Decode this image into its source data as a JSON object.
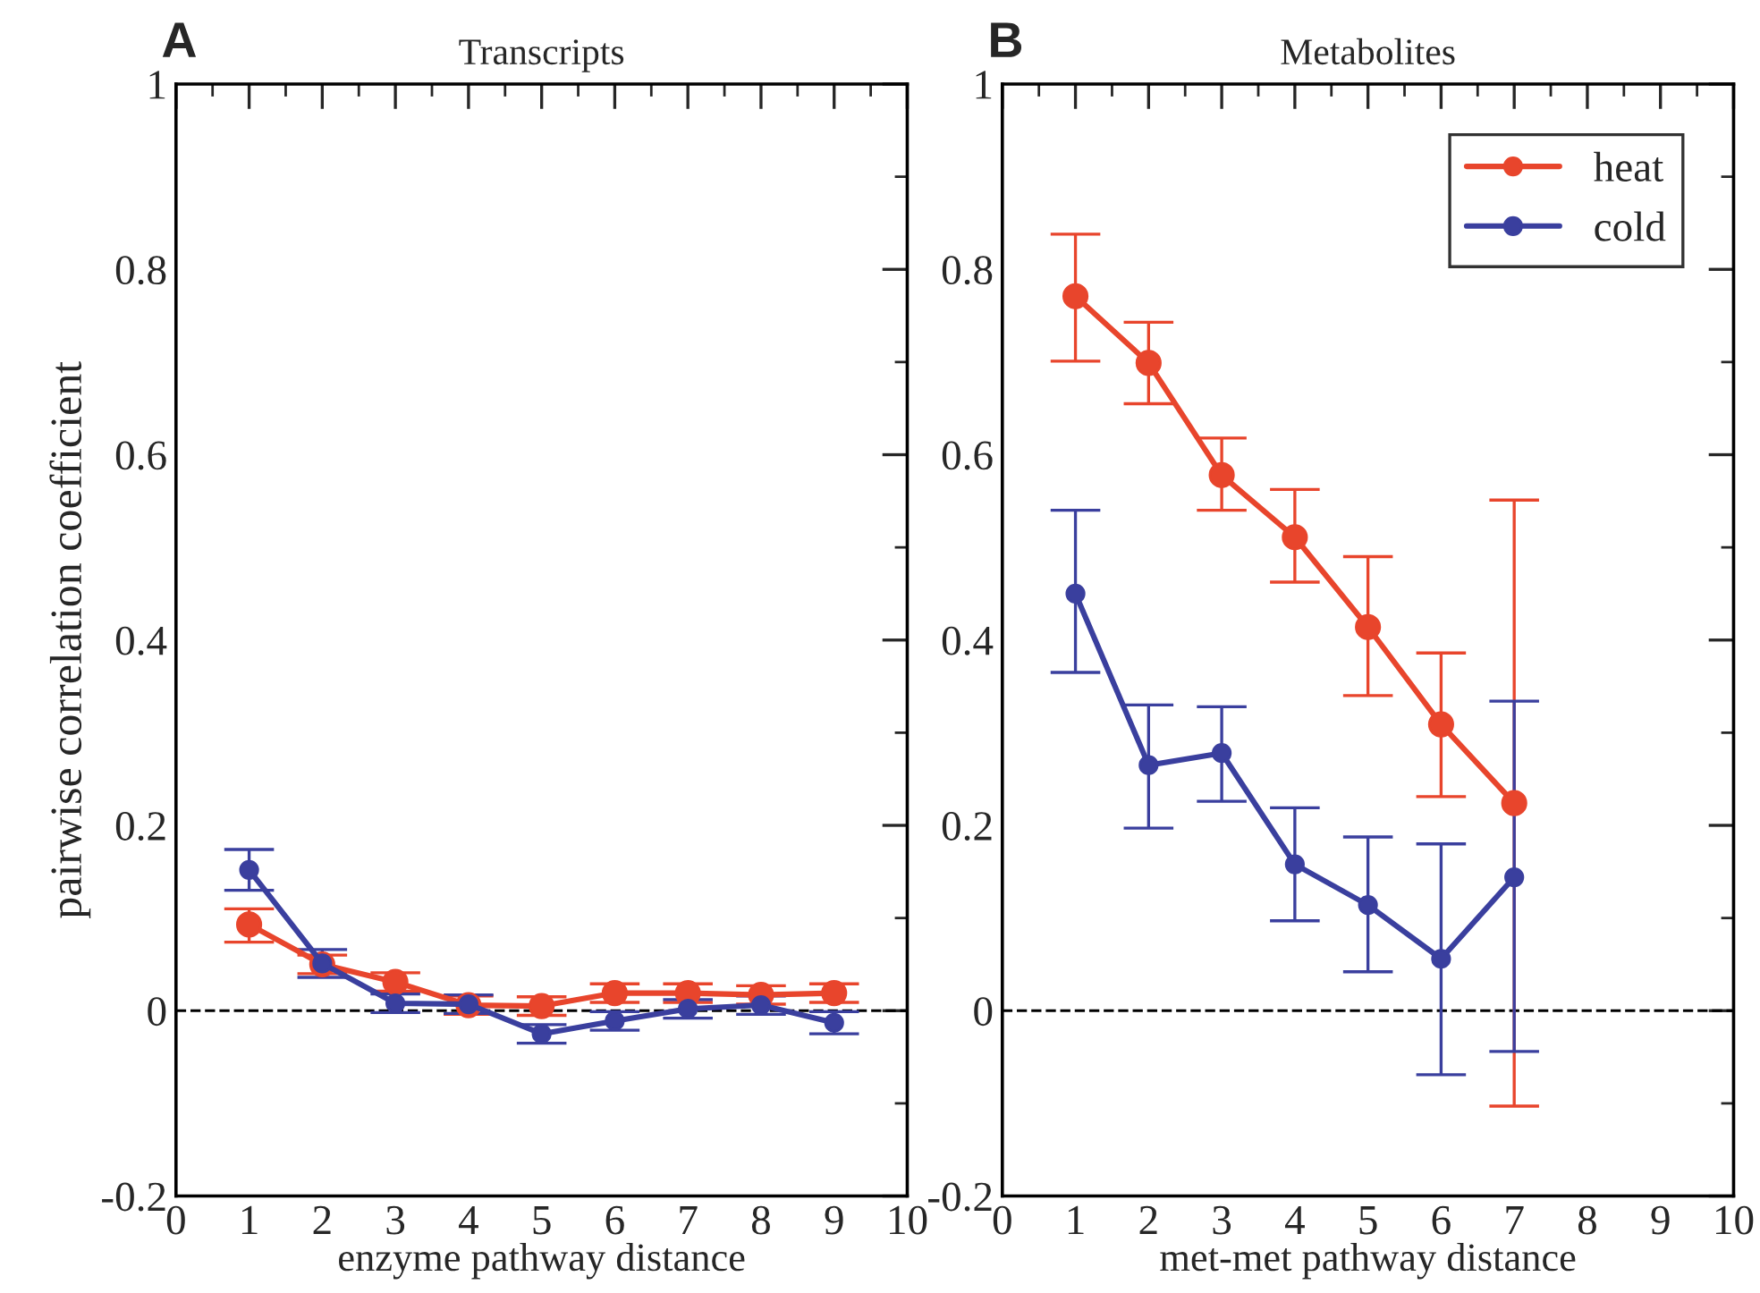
{
  "chart_data": [
    {
      "type": "line",
      "title": "Transcripts",
      "xlabel": "enzyme pathway distance",
      "ylabel": "pairwise correlation coefficient",
      "annotations": [
        "A"
      ],
      "x": [
        1,
        2,
        3,
        4,
        5,
        6,
        7,
        8,
        9
      ],
      "marker": "circle",
      "line_style": "solid",
      "grid": false,
      "legend": false,
      "xlim": [
        0,
        10
      ],
      "ylim": [
        -0.2,
        1
      ],
      "xticks": [
        0,
        {
          "value": 0.5,
          "label": null
        },
        1,
        {
          "value": 1.5,
          "label": null
        },
        2,
        {
          "value": 2.5,
          "label": null
        },
        3,
        {
          "value": 3.5,
          "label": null
        },
        4,
        {
          "value": 4.5,
          "label": null
        },
        5,
        {
          "value": 5.5,
          "label": null
        },
        6,
        {
          "value": 6.5,
          "label": null
        },
        7,
        {
          "value": 7.5,
          "label": null
        },
        8,
        {
          "value": 8.5,
          "label": null
        },
        9,
        {
          "value": 9.5,
          "label": null
        },
        10
      ],
      "yticks": [
        -0.2,
        {
          "value": -0.1,
          "label": null
        },
        0,
        {
          "value": 0.1,
          "label": null
        },
        0.2,
        {
          "value": 0.3,
          "label": null
        },
        0.4,
        {
          "value": 0.5,
          "label": null
        },
        0.6,
        {
          "value": 0.7,
          "label": null
        },
        0.8,
        {
          "value": 0.9,
          "label": null
        },
        1
      ],
      "ref_lines": [
        {
          "axis": "y",
          "value": 0,
          "color": "#000000",
          "line_style": "dashed"
        }
      ],
      "series": [
        {
          "color": "#e8452c",
          "values": [
            0.093,
            0.05,
            0.031,
            0.006,
            0.005,
            0.019,
            0.019,
            0.017,
            0.019
          ],
          "errors": [
            [
              0.074,
              0.11
            ],
            0.01,
            0.01,
            0.01,
            0.01,
            0.01,
            0.01,
            0.01,
            0.01
          ]
        },
        {
          "color": "#3a3f9e",
          "values": [
            0.152,
            0.051,
            0.008,
            0.007,
            -0.025,
            -0.011,
            0.002,
            0.006,
            -0.013
          ],
          "errors": [
            0.022,
            0.015,
            0.01,
            0.01,
            0.01,
            0.01,
            0.01,
            0.01,
            0.012
          ]
        }
      ]
    },
    {
      "type": "line",
      "title": "Metabolites",
      "xlabel": "met-met pathway distance",
      "annotations": [
        "B"
      ],
      "x": [
        1,
        2,
        3,
        4,
        5,
        6,
        7
      ],
      "marker": "circle",
      "line_style": "solid",
      "grid": false,
      "legend": "top right",
      "xlim": [
        0,
        10
      ],
      "ylim": [
        -0.2,
        1
      ],
      "xticks": [
        0,
        {
          "value": 0.5,
          "label": null
        },
        1,
        {
          "value": 1.5,
          "label": null
        },
        2,
        {
          "value": 2.5,
          "label": null
        },
        3,
        {
          "value": 3.5,
          "label": null
        },
        4,
        {
          "value": 4.5,
          "label": null
        },
        5,
        {
          "value": 5.5,
          "label": null
        },
        6,
        {
          "value": 6.5,
          "label": null
        },
        7,
        {
          "value": 7.5,
          "label": null
        },
        8,
        {
          "value": 8.5,
          "label": null
        },
        9,
        {
          "value": 9.5,
          "label": null
        },
        10
      ],
      "yticks": [
        -0.2,
        {
          "value": -0.1,
          "label": null
        },
        0,
        {
          "value": 0.1,
          "label": null
        },
        0.2,
        {
          "value": 0.3,
          "label": null
        },
        0.4,
        {
          "value": 0.5,
          "label": null
        },
        0.6,
        {
          "value": 0.7,
          "label": null
        },
        0.8,
        {
          "value": 0.9,
          "label": null
        },
        1
      ],
      "ref_lines": [
        {
          "axis": "y",
          "value": 0,
          "color": "#000000",
          "line_style": "dashed"
        }
      ],
      "series": [
        {
          "name": "heat",
          "color": "#e8452c",
          "values": [
            0.771,
            0.699,
            0.578,
            0.511,
            0.414,
            0.309,
            0.224
          ],
          "errors": [
            [
              0.701,
              0.838
            ],
            [
              0.655,
              0.743
            ],
            [
              0.54,
              0.618
            ],
            [
              0.4625,
              0.5625
            ],
            [
              0.34,
              0.49
            ],
            [
              0.231,
              0.386
            ],
            [
              -0.103,
              0.551
            ]
          ]
        },
        {
          "name": "cold",
          "color": "#3a3f9e",
          "values": [
            0.45,
            0.265,
            0.278,
            0.158,
            0.114,
            0.056,
            0.144
          ],
          "errors": [
            [
              0.365,
              0.54
            ],
            [
              0.197,
              0.33
            ],
            [
              0.226,
              0.328
            ],
            [
              0.097,
              0.219
            ],
            [
              0.042,
              0.1875
            ],
            [
              -0.069,
              0.18
            ],
            [
              -0.044,
              0.334
            ]
          ]
        }
      ]
    }
  ]
}
